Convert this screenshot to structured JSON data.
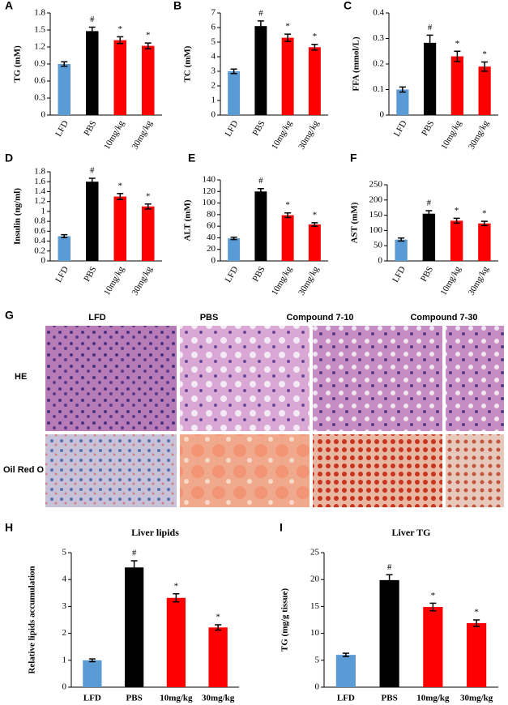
{
  "chart_data": [
    {
      "type": "bar",
      "panel": "A",
      "ylabel": "TG (mM)",
      "categories": [
        "LFD",
        "PBS",
        "10mg/kg",
        "30mg/kg"
      ],
      "values": [
        0.9,
        1.48,
        1.32,
        1.22
      ],
      "errors": [
        0.04,
        0.07,
        0.06,
        0.05
      ],
      "markers": [
        null,
        "#",
        "*",
        "*"
      ],
      "colors": [
        "#5b9bd5",
        "#000000",
        "#ff0000",
        "#ff0000"
      ],
      "ylim": [
        0,
        1.8
      ],
      "yticks": [
        0,
        0.3,
        0.6,
        0.9,
        1.2,
        1.5,
        1.8
      ]
    },
    {
      "type": "bar",
      "panel": "B",
      "ylabel": "TC (mM)",
      "categories": [
        "LFD",
        "PBS",
        "10mg/kg",
        "30mg/kg"
      ],
      "values": [
        3.0,
        6.1,
        5.3,
        4.65
      ],
      "errors": [
        0.15,
        0.35,
        0.25,
        0.2
      ],
      "markers": [
        null,
        "#",
        "*",
        "*"
      ],
      "colors": [
        "#5b9bd5",
        "#000000",
        "#ff0000",
        "#ff0000"
      ],
      "ylim": [
        0,
        7
      ],
      "yticks": [
        0,
        1,
        2,
        3,
        4,
        5,
        6,
        7
      ]
    },
    {
      "type": "bar",
      "panel": "C",
      "ylabel": "FFA (mmol/L)",
      "categories": [
        "LFD",
        "PBS",
        "10mg/kg",
        "30mg/kg"
      ],
      "values": [
        0.1,
        0.283,
        0.23,
        0.19
      ],
      "errors": [
        0.01,
        0.03,
        0.02,
        0.018
      ],
      "markers": [
        null,
        "#",
        "*",
        "*"
      ],
      "colors": [
        "#5b9bd5",
        "#000000",
        "#ff0000",
        "#ff0000"
      ],
      "ylim": [
        0,
        0.4
      ],
      "yticks": [
        0,
        0.1,
        0.2,
        0.3,
        0.4
      ]
    },
    {
      "type": "bar",
      "panel": "D",
      "ylabel": "Insulin (ng/ml)",
      "categories": [
        "LFD",
        "PBS",
        "10mg/kg",
        "30mg/kg"
      ],
      "values": [
        0.5,
        1.6,
        1.3,
        1.1
      ],
      "errors": [
        0.03,
        0.07,
        0.06,
        0.05
      ],
      "markers": [
        null,
        "#",
        "*",
        "*"
      ],
      "colors": [
        "#5b9bd5",
        "#000000",
        "#ff0000",
        "#ff0000"
      ],
      "ylim": [
        0,
        1.8
      ],
      "yticks": [
        0,
        0.2,
        0.4,
        0.6,
        0.8,
        1,
        1.2,
        1.4,
        1.6,
        1.8
      ]
    },
    {
      "type": "bar",
      "panel": "E",
      "ylabel": "ALT (mM)",
      "categories": [
        "LFD",
        "PBS",
        "10mg/kg",
        "30mg/kg"
      ],
      "values": [
        39,
        120,
        79,
        63
      ],
      "errors": [
        2,
        5,
        4,
        3
      ],
      "markers": [
        null,
        "#",
        "*",
        "*"
      ],
      "colors": [
        "#5b9bd5",
        "#000000",
        "#ff0000",
        "#ff0000"
      ],
      "ylim": [
        0,
        140
      ],
      "yticks": [
        0,
        20,
        40,
        60,
        80,
        100,
        120,
        140
      ]
    },
    {
      "type": "bar",
      "panel": "F",
      "ylabel": "AST (mM)",
      "categories": [
        "LFD",
        "PBS",
        "10mg/kg",
        "30mg/kg"
      ],
      "values": [
        70,
        155,
        132,
        123
      ],
      "errors": [
        5,
        10,
        8,
        7
      ],
      "markers": [
        null,
        "#",
        "*",
        "*"
      ],
      "colors": [
        "#5b9bd5",
        "#000000",
        "#ff0000",
        "#ff0000"
      ],
      "ylim": [
        0,
        250
      ],
      "yticks": [
        0,
        50,
        100,
        150,
        200,
        250
      ]
    },
    {
      "type": "bar",
      "panel": "H",
      "title": "Liver lipids",
      "ylabel": "Relative lipids accumulation",
      "categories": [
        "LFD",
        "PBS",
        "10mg/kg",
        "30mg/kg"
      ],
      "values": [
        1.0,
        4.45,
        3.32,
        2.22
      ],
      "errors": [
        0.05,
        0.25,
        0.15,
        0.1
      ],
      "markers": [
        null,
        "#",
        "*",
        "*"
      ],
      "colors": [
        "#5b9bd5",
        "#000000",
        "#ff0000",
        "#ff0000"
      ],
      "ylim": [
        0,
        5
      ],
      "yticks": [
        0,
        1,
        2,
        3,
        4,
        5
      ]
    },
    {
      "type": "bar",
      "panel": "I",
      "title": "Liver TG",
      "ylabel": "TG (mg/g tissue)",
      "categories": [
        "LFD",
        "PBS",
        "10mg/kg",
        "30mg/kg"
      ],
      "values": [
        6,
        19.9,
        14.9,
        11.9
      ],
      "errors": [
        0.3,
        1,
        0.7,
        0.6
      ],
      "markers": [
        null,
        "#",
        "*",
        "*"
      ],
      "colors": [
        "#5b9bd5",
        "#000000",
        "#ff0000",
        "#ff0000"
      ],
      "ylim": [
        0,
        25
      ],
      "yticks": [
        0,
        5,
        10,
        15,
        20,
        25
      ]
    }
  ],
  "panel_g": {
    "letter": "G",
    "columns": [
      "LFD",
      "PBS",
      "Compound 7-10",
      "Compound 7-30"
    ],
    "rows": [
      "HE",
      "Oil Red O"
    ]
  }
}
